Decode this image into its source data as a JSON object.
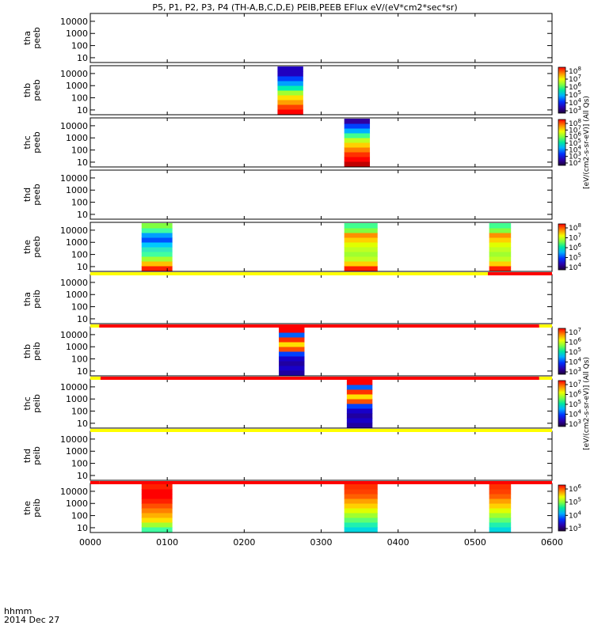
{
  "chart_data": {
    "type": "heatmap",
    "title": "P5, P1, P2, P3, P4 (TH-A,B,C,D,E) PEIB,PEEB EFlux eV/(eV*cm2*sec*sr)",
    "x_ticks": [
      "0000",
      "0100",
      "0200",
      "0300",
      "0400",
      "0500",
      "0600"
    ],
    "x_tick_label_top": "hhmm",
    "x_tick_label_bottom": "2014 Dec 27",
    "y_ticks": [
      "10",
      "100",
      "1000",
      "10000"
    ],
    "y_scale": "log",
    "panels": [
      {
        "ylabel": [
          "tha",
          "peeb"
        ],
        "cbar_label": "",
        "cbar_ticks": [],
        "blocks": []
      },
      {
        "ylabel": [
          "thb",
          "peeb"
        ],
        "cbar_label": "",
        "cbar_ticks": [
          "10^8",
          "10^7",
          "10^6",
          "10^5",
          "10^4",
          "10^3"
        ],
        "blocks": [
          {
            "start": "0226",
            "end": "0246",
            "profile": "electron_narrow"
          }
        ]
      },
      {
        "ylabel": [
          "thc",
          "peeb"
        ],
        "cbar_label": "",
        "cbar_ticks": [
          "10^8",
          "10^7",
          "10^6",
          "10^5",
          "10^4",
          "10^3",
          "10^2"
        ],
        "blocks": [
          {
            "start": "0318",
            "end": "0338",
            "profile": "electron_hot"
          }
        ]
      },
      {
        "ylabel": [
          "thd",
          "peeb"
        ],
        "cbar_label": "",
        "cbar_ticks": [],
        "blocks": []
      },
      {
        "ylabel": [
          "the",
          "peeb"
        ],
        "cbar_label": "",
        "cbar_ticks": [
          "10^8",
          "10^7",
          "10^6",
          "10^5",
          "10^4"
        ],
        "blocks": [
          {
            "start": "0040",
            "end": "0104",
            "profile": "electron_mixed"
          },
          {
            "start": "0318",
            "end": "0344",
            "profile": "electron_warm"
          },
          {
            "start": "0511",
            "end": "0528",
            "profile": "electron_warm"
          }
        ]
      },
      {
        "ylabel": [
          "tha",
          "peib"
        ],
        "cbar_label": "",
        "cbar_ticks": [],
        "blocks": []
      },
      {
        "ylabel": [
          "thb",
          "peib"
        ],
        "cbar_label": "",
        "cbar_ticks": [
          "10^7",
          "10^6",
          "10^5",
          "10^4",
          "10^3"
        ],
        "blocks": [
          {
            "start": "0227",
            "end": "0247",
            "profile": "ion_banded"
          }
        ]
      },
      {
        "ylabel": [
          "thc",
          "peib"
        ],
        "cbar_label": "",
        "cbar_ticks": [
          "10^7",
          "10^6",
          "10^5",
          "10^4",
          "10^3"
        ],
        "blocks": [
          {
            "start": "0320",
            "end": "0340",
            "profile": "ion_banded"
          }
        ]
      },
      {
        "ylabel": [
          "thd",
          "peib"
        ],
        "cbar_label": "",
        "cbar_ticks": [],
        "blocks": []
      },
      {
        "ylabel": [
          "the",
          "peib"
        ],
        "cbar_label": "",
        "cbar_ticks": [
          "10^6",
          "10^5",
          "10^4",
          "10^3"
        ],
        "blocks": [
          {
            "start": "0040",
            "end": "0104",
            "profile": "ion_hot"
          },
          {
            "start": "0318",
            "end": "0344",
            "profile": "ion_warm"
          },
          {
            "start": "0511",
            "end": "0528",
            "profile": "ion_warm"
          }
        ]
      }
    ],
    "mode_bars": [
      {
        "after_panel": 4,
        "segments": [
          {
            "start": "0000",
            "end": "0510",
            "color": "#ffff00"
          },
          {
            "start": "0510",
            "end": "0600",
            "color": "#ff0000"
          }
        ]
      },
      {
        "after_panel": 5,
        "segments": [
          {
            "start": "0000",
            "end": "0007",
            "color": "#ffff00"
          },
          {
            "start": "0007",
            "end": "0550",
            "color": "#ff0000"
          },
          {
            "start": "0550",
            "end": "0600",
            "color": "#ffff00"
          }
        ]
      },
      {
        "after_panel": 6,
        "segments": [
          {
            "start": "0000",
            "end": "0008",
            "color": "#ffff00"
          },
          {
            "start": "0008",
            "end": "0550",
            "color": "#ff0000"
          },
          {
            "start": "0550",
            "end": "0600",
            "color": "#ffff00"
          }
        ]
      },
      {
        "after_panel": 7,
        "segments": [
          {
            "start": "0000",
            "end": "0600",
            "color": "#ffff00"
          }
        ]
      },
      {
        "after_panel": 8,
        "segments": [
          {
            "start": "0000",
            "end": "0007",
            "color": "#ff0000"
          },
          {
            "start": "0007",
            "end": "0007",
            "color": "#ffff00"
          },
          {
            "start": "0007",
            "end": "0600",
            "color": "#ff0000"
          }
        ]
      }
    ],
    "side_labels": [
      {
        "text": "[eV/(cm2-s-sr-eV)] (All Qs)",
        "for_panels": [
          0,
          4
        ]
      },
      {
        "text": "[eV/(cm2-s-sr-eV)] (All Qs)",
        "for_panels": [
          5,
          9
        ]
      }
    ]
  }
}
